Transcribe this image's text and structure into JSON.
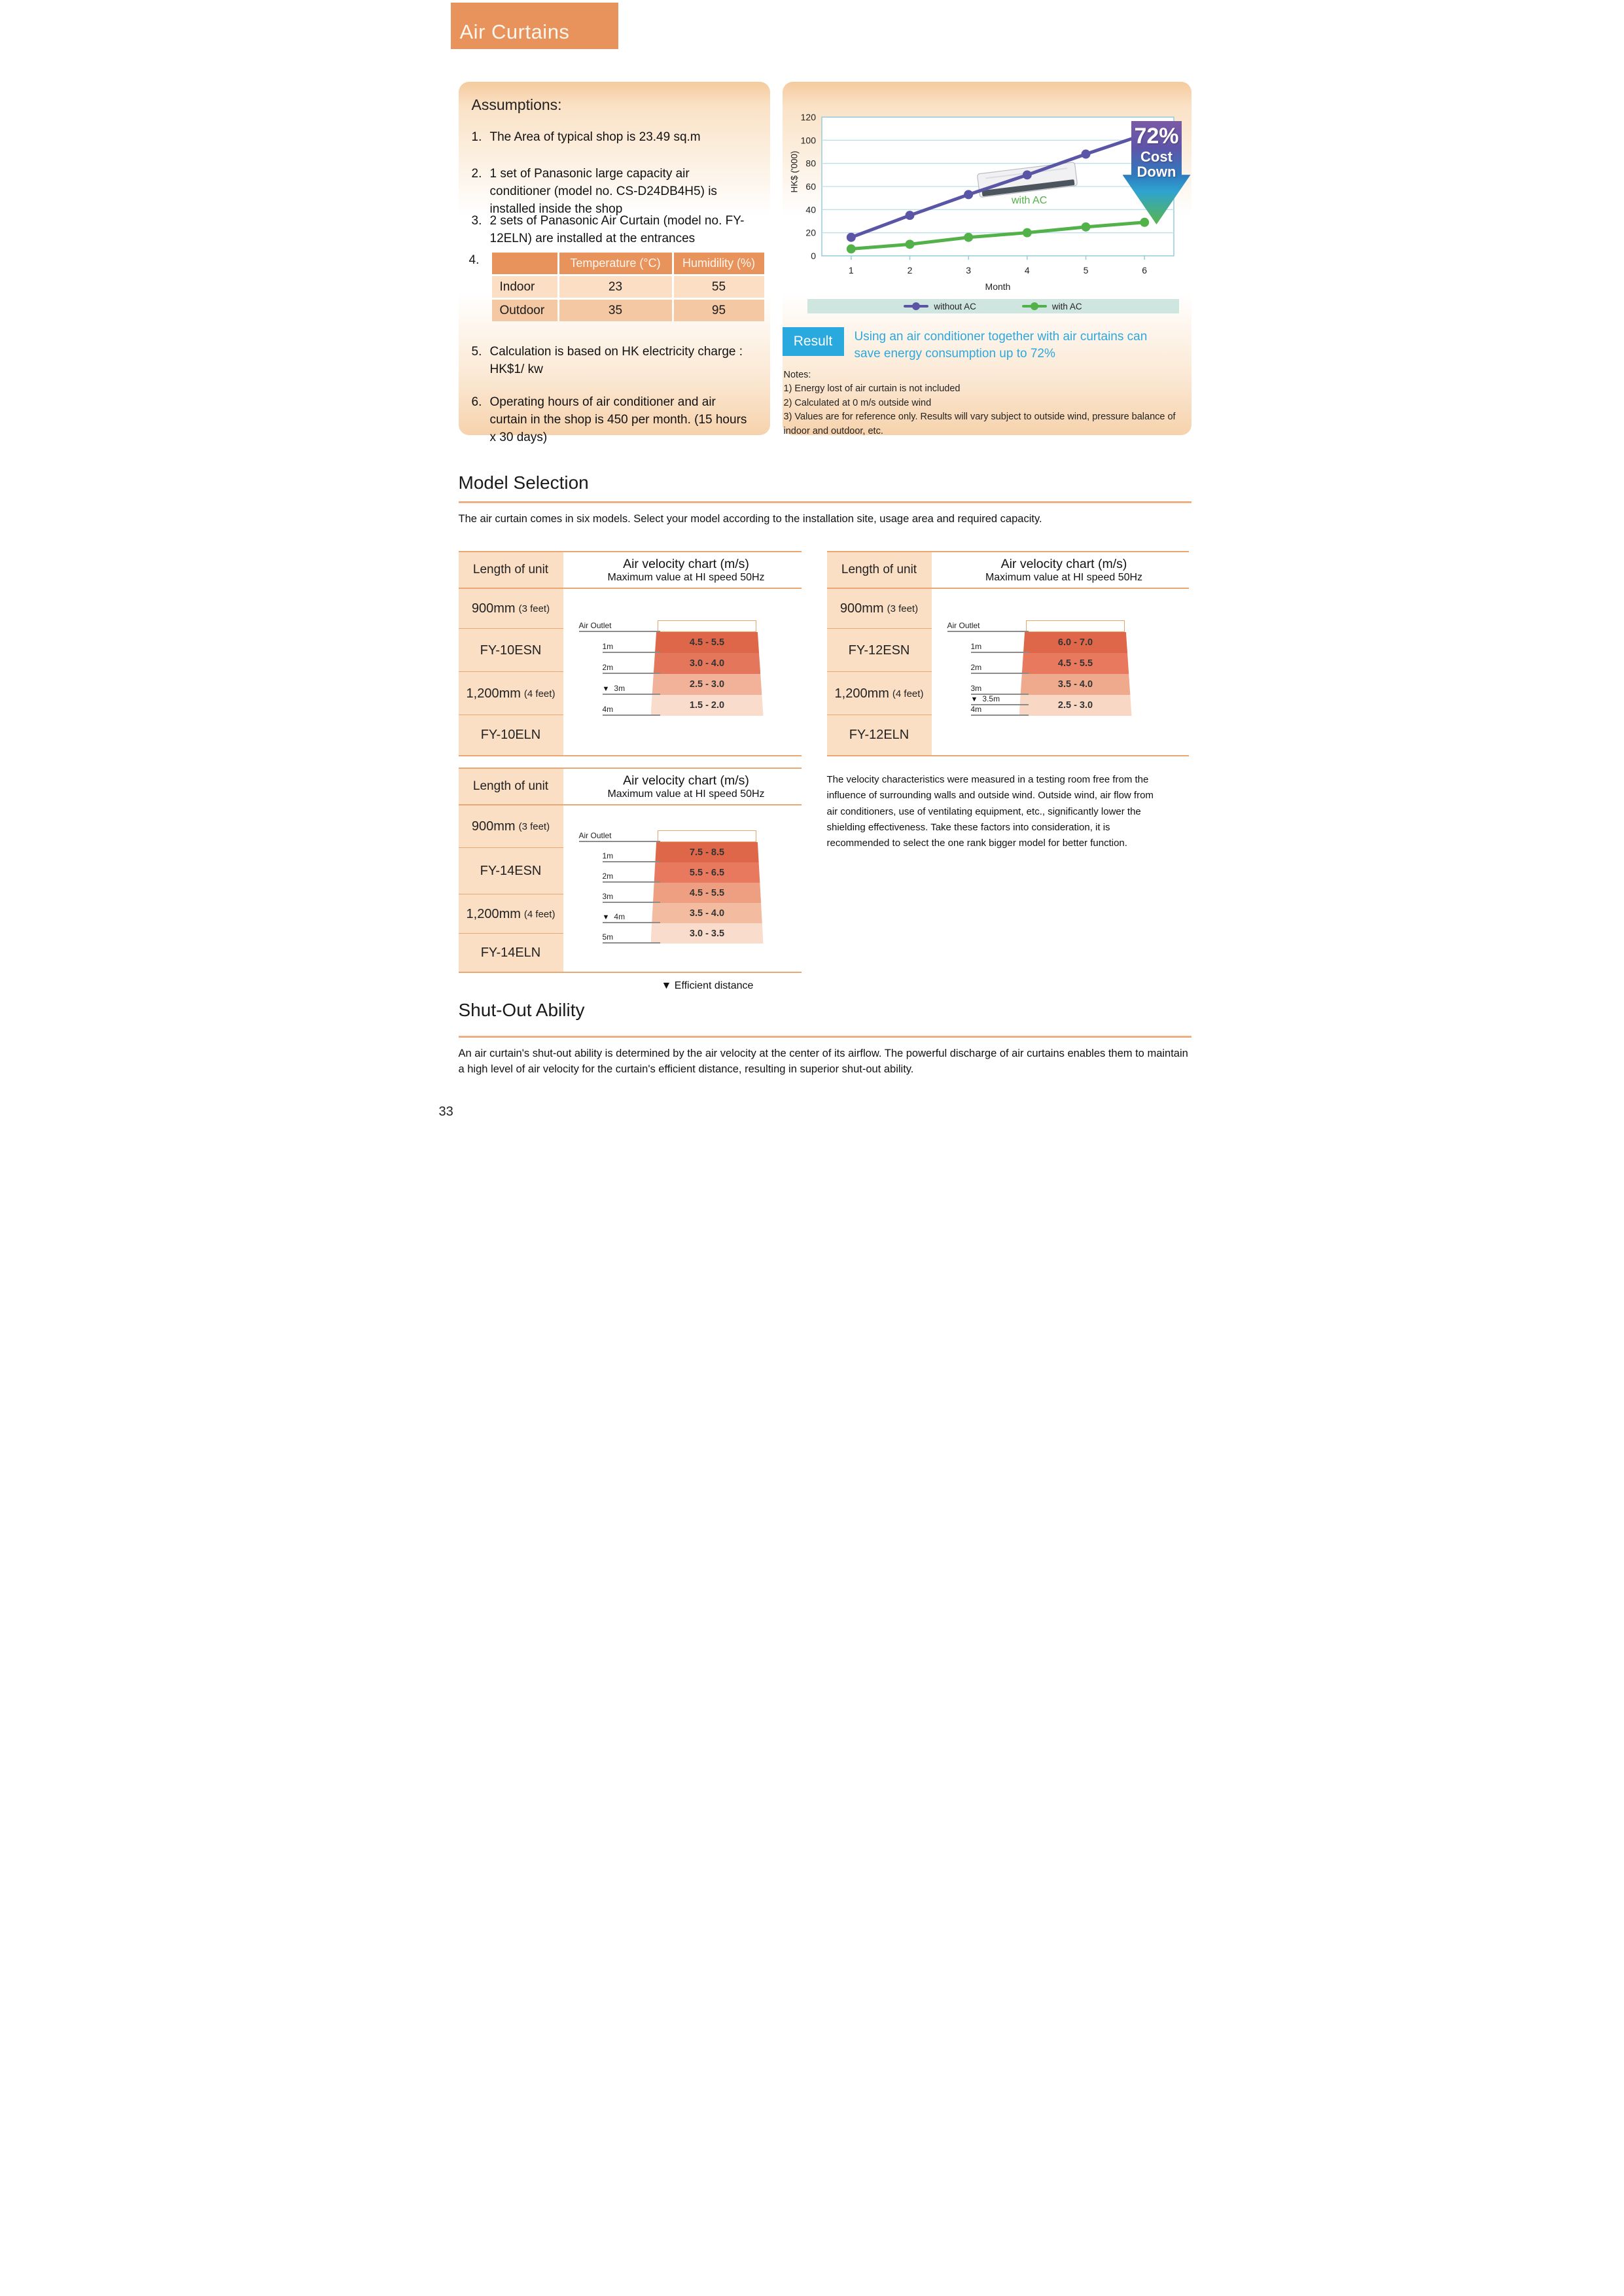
{
  "page": {
    "number": "33"
  },
  "banner": {
    "title": "Air Curtains"
  },
  "assumptions": {
    "heading": "Assumptions:",
    "items": [
      {
        "num": "1.",
        "text": "The Area of typical shop is 23.49 sq.m"
      },
      {
        "num": "2.",
        "text": "1 set of Panasonic large capacity air conditioner (model no. CS-D24DB4H5) is installed inside the shop"
      },
      {
        "num": "3.",
        "text": "2 sets of Panasonic Air Curtain (model no. FY-12ELN) are installed at the entrances"
      },
      {
        "num": "5.",
        "text": "Calculation is based on HK electricity charge : HK$1/ kw"
      },
      {
        "num": "6.",
        "text": "Operating hours of air conditioner and air curtain in the shop is 450 per month. (15 hours x 30 days)"
      }
    ],
    "item4": {
      "num": "4.",
      "table": {
        "col_headers": [
          "Temperature (°C)",
          "Humidility (%)"
        ],
        "rows": [
          {
            "label": "Indoor",
            "values": [
              "23",
              "55"
            ]
          },
          {
            "label": "Outdoor",
            "values": [
              "35",
              "95"
            ]
          }
        ]
      }
    }
  },
  "chart_data": {
    "type": "line",
    "x": [
      1,
      2,
      3,
      4,
      5,
      6
    ],
    "xlabel": "Month",
    "ylabel": "HK$ ('000)",
    "ylim": [
      0,
      120
    ],
    "yticks": [
      0,
      20,
      40,
      60,
      80,
      100,
      120
    ],
    "grid": true,
    "legend_position": "bottom",
    "series": [
      {
        "name": "without AC",
        "color": "#5B55A5",
        "values": [
          16,
          35,
          53,
          70,
          88,
          105
        ]
      },
      {
        "name": "with AC",
        "color": "#53B149",
        "values": [
          6,
          10,
          16,
          20,
          25,
          29
        ]
      }
    ],
    "annotations": [
      {
        "text": "with AC",
        "color": "#53B149"
      }
    ],
    "badge": {
      "line1": "72%",
      "line2": "Cost",
      "line3": "Down"
    }
  },
  "result": {
    "label": "Result",
    "text": "Using an air conditioner together with air curtains can save energy consumption up to 72%"
  },
  "notes": {
    "heading": "Notes:",
    "lines": [
      "1) Energy lost of air curtain is not included",
      "2) Calculated at 0 m/s outside wind",
      "3) Values are for reference only. Results will vary subject to outside wind, pressure balance of indoor and outdoor, etc."
    ]
  },
  "model_selection": {
    "heading": "Model Selection",
    "intro": "The air curtain comes in six models. Select your model according to the installation site, usage area and required capacity."
  },
  "velocity": {
    "header_left": "Length of unit",
    "header_title": "Air velocity chart (m/s)",
    "header_sub": "Maximum value at HI speed 50Hz",
    "efficient_caption": "▼ Efficient distance",
    "note": "The velocity characteristics were measured in a testing room free from the influence of surrounding walls and outside wind. Outside wind, air flow from air conditioners, use of ventilating equipment, etc., significantly lower the shielding effectiveness. Take these factors into consideration, it is recommended to select the one rank bigger model for better function.",
    "tables": [
      {
        "rows": [
          {
            "main": "900mm",
            "sub": "(3 feet)"
          },
          {
            "main": "FY-10ESN",
            "sub": ""
          },
          {
            "main": "1,200mm",
            "sub": "(4 feet)"
          },
          {
            "main": "FY-10ELN",
            "sub": ""
          }
        ],
        "markers": [
          {
            "label": "Air Outlet",
            "pos": 0,
            "efficient": false
          },
          {
            "label": "1m",
            "pos": 1,
            "efficient": false
          },
          {
            "label": "2m",
            "pos": 2,
            "efficient": false
          },
          {
            "label": "3m",
            "pos": 3,
            "efficient": true
          },
          {
            "label": "4m",
            "pos": 4,
            "efficient": false
          }
        ],
        "bands": [
          {
            "range": "4.5 - 5.5",
            "color": "#DF6749"
          },
          {
            "range": "3.0 - 4.0",
            "color": "#E4765B"
          },
          {
            "range": "2.5 - 3.0",
            "color": "#F2B29A"
          },
          {
            "range": "1.5 - 2.0",
            "color": "#F9DCCB"
          }
        ]
      },
      {
        "rows": [
          {
            "main": "900mm",
            "sub": "(3 feet)"
          },
          {
            "main": "FY-12ESN",
            "sub": ""
          },
          {
            "main": "1,200mm",
            "sub": "(4 feet)"
          },
          {
            "main": "FY-12ELN",
            "sub": ""
          }
        ],
        "markers": [
          {
            "label": "Air Outlet",
            "pos": 0,
            "efficient": false
          },
          {
            "label": "1m",
            "pos": 1,
            "efficient": false
          },
          {
            "label": "2m",
            "pos": 2,
            "efficient": false
          },
          {
            "label": "3m",
            "pos": 3,
            "efficient": false
          },
          {
            "label": "3.5m",
            "pos": 3.5,
            "efficient": true
          },
          {
            "label": "4m",
            "pos": 4,
            "efficient": false
          }
        ],
        "bands": [
          {
            "range": "6.0 - 7.0",
            "color": "#DF6749"
          },
          {
            "range": "4.5 - 5.5",
            "color": "#E8795E"
          },
          {
            "range": "3.5 - 4.0",
            "color": "#EFA98C"
          },
          {
            "range": "2.5 - 3.0",
            "color": "#F8D7C4"
          }
        ]
      },
      {
        "rows": [
          {
            "main": "900mm",
            "sub": "(3 feet)"
          },
          {
            "main": "FY-14ESN",
            "sub": ""
          },
          {
            "main": "1,200mm",
            "sub": "(4 feet)"
          },
          {
            "main": "FY-14ELN",
            "sub": ""
          }
        ],
        "markers": [
          {
            "label": "Air Outlet",
            "pos": 0,
            "efficient": false
          },
          {
            "label": "1m",
            "pos": 1,
            "efficient": false
          },
          {
            "label": "2m",
            "pos": 2,
            "efficient": false
          },
          {
            "label": "3m",
            "pos": 3,
            "efficient": false
          },
          {
            "label": "4m",
            "pos": 4,
            "efficient": true
          },
          {
            "label": "5m",
            "pos": 5,
            "efficient": false
          }
        ],
        "bands": [
          {
            "range": "7.5 - 8.5",
            "color": "#DF6749"
          },
          {
            "range": "5.5 - 6.5",
            "color": "#E8795E"
          },
          {
            "range": "4.5 - 5.5",
            "color": "#EE9F81"
          },
          {
            "range": "3.5 - 4.0",
            "color": "#F3BCA1"
          },
          {
            "range": "3.0 - 3.5",
            "color": "#F9DCCB"
          }
        ]
      }
    ]
  },
  "shut_out": {
    "heading": "Shut-Out Ability",
    "text": "An air curtain's shut-out ability is determined by the air velocity at the center of its airflow. The powerful discharge of air curtains enables them to maintain a high level of air velocity for the curtain's efficient distance, resulting in superior shut-out ability."
  }
}
